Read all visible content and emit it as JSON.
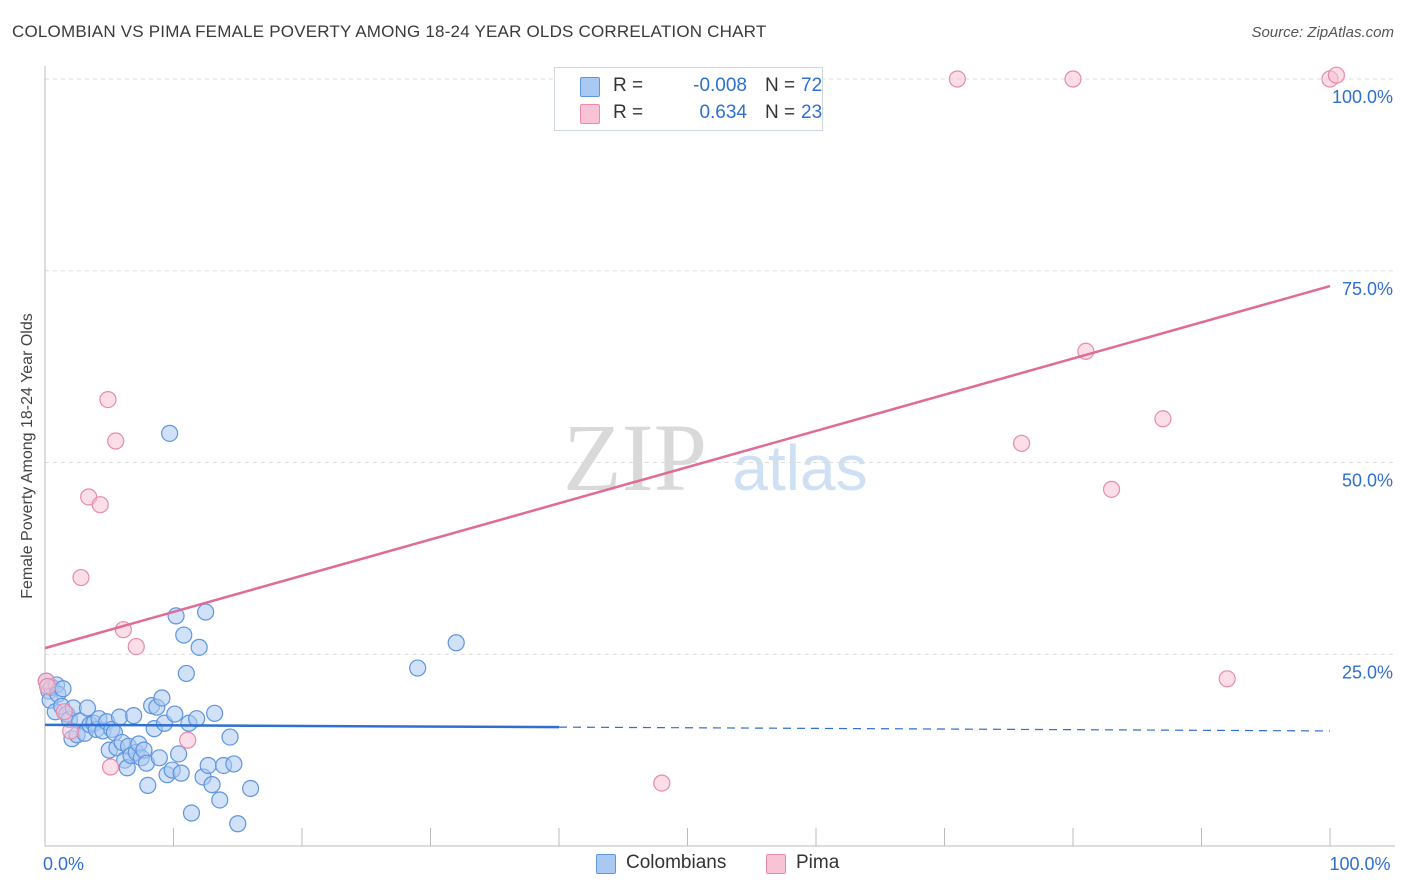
{
  "title": "COLOMBIAN VS PIMA FEMALE POVERTY AMONG 18-24 YEAR OLDS CORRELATION CHART",
  "source": "Source: ZipAtlas.com",
  "watermark": {
    "zip": "ZIP",
    "atlas": "atlas"
  },
  "stats": [
    {
      "r_label": "R =",
      "r_value": "-0.008",
      "n_label": "N =",
      "n_value": "72",
      "color": "#a9c8f2",
      "border": "#5e95de"
    },
    {
      "r_label": "R =",
      "r_value": "0.634",
      "n_label": "N =",
      "n_value": "23",
      "color": "#f8c3d4",
      "border": "#e88aaa"
    }
  ],
  "legend": [
    {
      "label": "Colombians",
      "color": "#a9c8f2",
      "border": "#5e95de"
    },
    {
      "label": "Pima",
      "color": "#f8c3d4",
      "border": "#e88aaa"
    }
  ],
  "chart_data": {
    "type": "scatter",
    "ylabel": "Female Poverty Among 18-24 Year Olds",
    "xlim": [
      0,
      100
    ],
    "ylim": [
      0,
      100
    ],
    "x_tick_labels": [
      {
        "value": 0,
        "label": "0.0%"
      },
      {
        "value": 100,
        "label": "100.0%"
      }
    ],
    "y_tick_labels": [
      {
        "value": 25,
        "label": "25.0%"
      },
      {
        "value": 50,
        "label": "50.0%"
      },
      {
        "value": 75,
        "label": "75.0%"
      },
      {
        "value": 100,
        "label": "100.0%"
      }
    ],
    "grid": "horizontal dashed",
    "legend_position": "bottom-center",
    "series": [
      {
        "name": "Colombians",
        "color": "#5e95de",
        "fill": "#a9c8f2",
        "trend": {
          "x": [
            0,
            40
          ],
          "y": [
            15.8,
            15.5
          ],
          "dashed_to": [
            100,
            15.0
          ]
        },
        "points": [
          [
            0.1,
            21.5
          ],
          [
            0.3,
            20.2
          ],
          [
            0.4,
            19.0
          ],
          [
            0.5,
            20.7
          ],
          [
            0.8,
            17.5
          ],
          [
            0.9,
            21.0
          ],
          [
            1.0,
            19.8
          ],
          [
            1.3,
            18.2
          ],
          [
            1.4,
            20.5
          ],
          [
            1.7,
            17.2
          ],
          [
            1.9,
            16.5
          ],
          [
            2.1,
            14.0
          ],
          [
            2.2,
            18.0
          ],
          [
            2.5,
            14.5
          ],
          [
            2.7,
            16.3
          ],
          [
            3.1,
            14.7
          ],
          [
            3.3,
            18.0
          ],
          [
            3.5,
            15.8
          ],
          [
            3.8,
            16.0
          ],
          [
            4.0,
            15.2
          ],
          [
            4.2,
            16.6
          ],
          [
            4.5,
            15.0
          ],
          [
            4.8,
            16.2
          ],
          [
            5.0,
            12.5
          ],
          [
            5.2,
            15.2
          ],
          [
            5.4,
            14.8
          ],
          [
            5.6,
            12.8
          ],
          [
            5.8,
            16.8
          ],
          [
            6.0,
            13.5
          ],
          [
            6.2,
            11.2
          ],
          [
            6.4,
            10.2
          ],
          [
            6.5,
            13.0
          ],
          [
            6.7,
            11.8
          ],
          [
            6.9,
            17.0
          ],
          [
            7.1,
            12.2
          ],
          [
            7.3,
            13.3
          ],
          [
            7.5,
            11.5
          ],
          [
            7.7,
            12.5
          ],
          [
            7.9,
            10.8
          ],
          [
            8.0,
            7.9
          ],
          [
            8.3,
            18.3
          ],
          [
            8.5,
            15.3
          ],
          [
            8.7,
            18.1
          ],
          [
            8.9,
            11.5
          ],
          [
            9.1,
            19.3
          ],
          [
            9.3,
            16.0
          ],
          [
            9.5,
            9.3
          ],
          [
            9.7,
            53.8
          ],
          [
            9.9,
            9.9
          ],
          [
            10.1,
            17.2
          ],
          [
            10.2,
            30.0
          ],
          [
            10.4,
            12.0
          ],
          [
            10.6,
            9.5
          ],
          [
            10.8,
            27.5
          ],
          [
            11.0,
            22.5
          ],
          [
            11.2,
            16.0
          ],
          [
            11.4,
            4.3
          ],
          [
            11.8,
            16.6
          ],
          [
            12.0,
            25.9
          ],
          [
            12.3,
            9.0
          ],
          [
            12.5,
            30.5
          ],
          [
            12.7,
            10.5
          ],
          [
            13.0,
            8.0
          ],
          [
            13.2,
            17.3
          ],
          [
            13.6,
            6.0
          ],
          [
            13.9,
            10.5
          ],
          [
            14.4,
            14.2
          ],
          [
            14.7,
            10.7
          ],
          [
            15.0,
            2.9
          ],
          [
            16.0,
            7.5
          ],
          [
            29.0,
            23.2
          ],
          [
            32.0,
            26.5
          ]
        ]
      },
      {
        "name": "Pima",
        "color": "#e88aaa",
        "fill": "#f8c3d4",
        "trend": {
          "x": [
            0,
            100
          ],
          "y": [
            25.8,
            73.0
          ]
        },
        "points": [
          [
            0.1,
            21.5
          ],
          [
            0.2,
            20.8
          ],
          [
            1.5,
            17.5
          ],
          [
            2.0,
            15.0
          ],
          [
            2.8,
            35.0
          ],
          [
            3.4,
            45.5
          ],
          [
            4.3,
            44.5
          ],
          [
            4.9,
            58.2
          ],
          [
            5.1,
            10.3
          ],
          [
            5.5,
            52.8
          ],
          [
            6.1,
            28.2
          ],
          [
            7.1,
            26.0
          ],
          [
            11.1,
            13.8
          ],
          [
            48.0,
            8.2
          ],
          [
            71.0,
            100.0
          ],
          [
            76.0,
            52.5
          ],
          [
            80.0,
            100.0
          ],
          [
            81.0,
            64.5
          ],
          [
            83.0,
            46.5
          ],
          [
            87.0,
            55.7
          ],
          [
            92.0,
            21.8
          ],
          [
            100.0,
            100.0
          ],
          [
            100.5,
            100.5
          ]
        ]
      }
    ]
  }
}
